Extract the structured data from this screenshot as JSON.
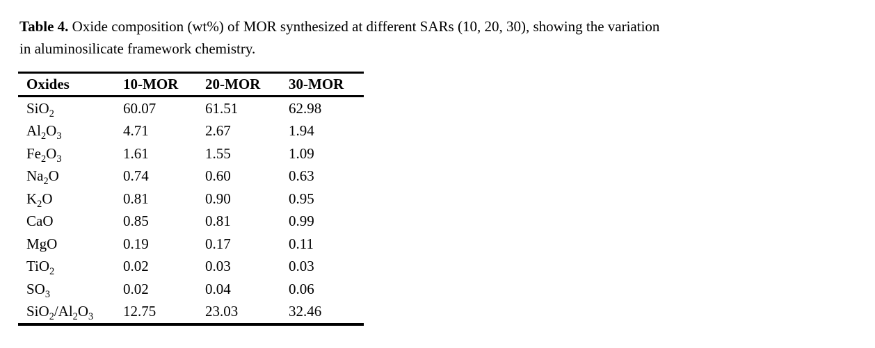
{
  "caption": {
    "label": "Table 4.",
    "line1": "Oxide composition (wt%) of MOR synthesized at different SARs (10, 20, 30), showing the variation",
    "line2": "in aluminosilicate framework chemistry."
  },
  "table": {
    "columns": [
      "Oxides",
      "10-MOR",
      "20-MOR",
      "30-MOR"
    ],
    "rows": [
      {
        "oxide": "SiO~2~",
        "values": [
          "60.07",
          "61.51",
          "62.98"
        ]
      },
      {
        "oxide": "Al~2~O~3~",
        "values": [
          "4.71",
          "2.67",
          "1.94"
        ]
      },
      {
        "oxide": "Fe~2~O~3~",
        "values": [
          "1.61",
          "1.55",
          "1.09"
        ]
      },
      {
        "oxide": "Na~2~O",
        "values": [
          "0.74",
          "0.60",
          "0.63"
        ]
      },
      {
        "oxide": "K~2~O",
        "values": [
          "0.81",
          "0.90",
          "0.95"
        ]
      },
      {
        "oxide": "CaO",
        "values": [
          "0.85",
          "0.81",
          "0.99"
        ]
      },
      {
        "oxide": "MgO",
        "values": [
          "0.19",
          "0.17",
          "0.11"
        ]
      },
      {
        "oxide": "TiO~2~",
        "values": [
          "0.02",
          "0.03",
          "0.03"
        ]
      },
      {
        "oxide": "SO~3~",
        "values": [
          "0.02",
          "0.04",
          "0.06"
        ]
      },
      {
        "oxide": "SiO~2~/Al~2~O~3~",
        "values": [
          "12.75",
          "23.03",
          "32.46"
        ]
      }
    ]
  },
  "colors": {
    "text": "#000000",
    "background": "#ffffff",
    "rule": "#000000"
  }
}
